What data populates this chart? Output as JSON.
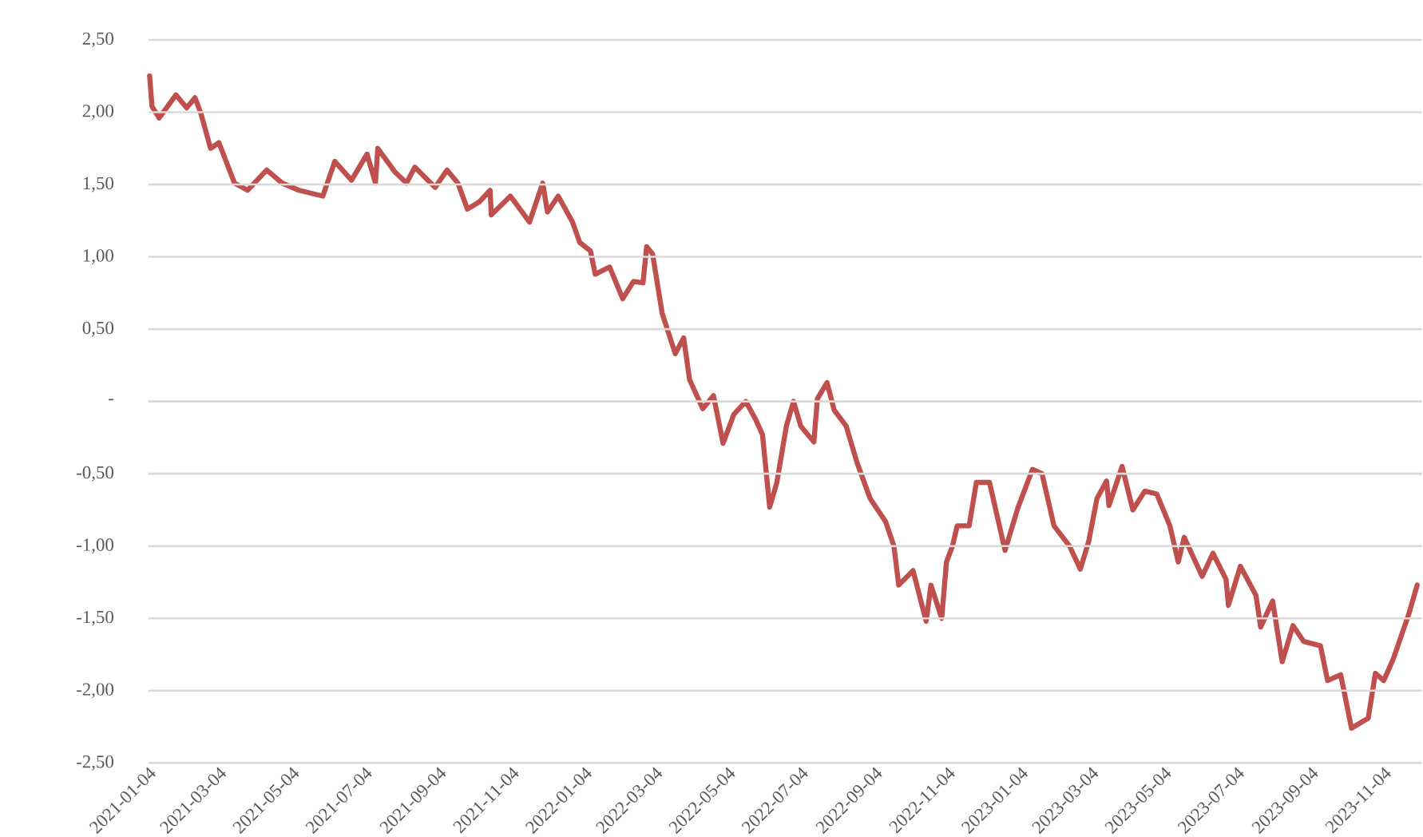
{
  "chart_data": {
    "type": "line",
    "color": "#c0504d",
    "grid": "y",
    "x": [
      "2021-01-05",
      "2021-01-07",
      "2021-01-13",
      "2021-01-27",
      "2021-02-05",
      "2021-02-12",
      "2021-02-17",
      "2021-02-25",
      "2021-03-04",
      "2021-03-17",
      "2021-03-28",
      "2021-04-13",
      "2021-04-26",
      "2021-05-10",
      "2021-05-30",
      "2021-06-09",
      "2021-06-23",
      "2021-07-06",
      "2021-07-13",
      "2021-07-15",
      "2021-07-29",
      "2021-08-08",
      "2021-08-15",
      "2021-09-01",
      "2021-09-11",
      "2021-09-20",
      "2021-09-28",
      "2021-10-08",
      "2021-10-17",
      "2021-10-18",
      "2021-11-03",
      "2021-11-19",
      "2021-11-30",
      "2021-12-04",
      "2021-12-13",
      "2021-12-25",
      "2021-12-31",
      "2022-01-09",
      "2022-01-13",
      "2022-01-25",
      "2022-02-05",
      "2022-02-14",
      "2022-02-22",
      "2022-02-25",
      "2022-03-02",
      "2022-03-10",
      "2022-03-21",
      "2022-03-28",
      "2022-04-02",
      "2022-04-13",
      "2022-04-22",
      "2022-04-30",
      "2022-05-09",
      "2022-05-19",
      "2022-05-27",
      "2022-06-02",
      "2022-06-08",
      "2022-06-14",
      "2022-06-22",
      "2022-06-28",
      "2022-07-04",
      "2022-07-15",
      "2022-07-18",
      "2022-07-26",
      "2022-08-01",
      "2022-08-11",
      "2022-08-20",
      "2022-08-31",
      "2022-09-13",
      "2022-09-20",
      "2022-09-24",
      "2022-10-06",
      "2022-10-17",
      "2022-10-21",
      "2022-10-30",
      "2022-11-03",
      "2022-11-08",
      "2022-11-12",
      "2022-11-22",
      "2022-11-28",
      "2022-12-09",
      "2022-12-22",
      "2023-01-02",
      "2023-01-14",
      "2023-01-22",
      "2023-02-01",
      "2023-02-14",
      "2023-02-23",
      "2023-03-02",
      "2023-03-09",
      "2023-03-17",
      "2023-03-19",
      "2023-03-30",
      "2023-04-08",
      "2023-04-18",
      "2023-04-28",
      "2023-05-09",
      "2023-05-16",
      "2023-05-21",
      "2023-06-05",
      "2023-06-14",
      "2023-06-25",
      "2023-06-27",
      "2023-07-07",
      "2023-07-20",
      "2023-07-24",
      "2023-08-03",
      "2023-08-11",
      "2023-08-20",
      "2023-08-29",
      "2023-09-12",
      "2023-09-18",
      "2023-09-29",
      "2023-10-08",
      "2023-10-22",
      "2023-10-28",
      "2023-11-04",
      "2023-11-12",
      "2023-11-25",
      "2023-12-02"
    ],
    "values": [
      2.25,
      2.04,
      1.96,
      2.12,
      2.03,
      2.1,
      1.99,
      1.75,
      1.79,
      1.51,
      1.46,
      1.6,
      1.51,
      1.46,
      1.42,
      1.66,
      1.53,
      1.71,
      1.51,
      1.75,
      1.59,
      1.51,
      1.62,
      1.48,
      1.6,
      1.51,
      1.33,
      1.38,
      1.46,
      1.29,
      1.42,
      1.24,
      1.51,
      1.31,
      1.42,
      1.24,
      1.1,
      1.04,
      0.88,
      0.93,
      0.71,
      0.83,
      0.82,
      1.07,
      1.02,
      0.61,
      0.33,
      0.44,
      0.15,
      -0.05,
      0.04,
      -0.29,
      -0.09,
      0.0,
      -0.12,
      -0.23,
      -0.73,
      -0.56,
      -0.17,
      0.0,
      -0.17,
      -0.28,
      0.02,
      0.13,
      -0.06,
      -0.17,
      -0.42,
      -0.67,
      -0.83,
      -1.0,
      -1.27,
      -1.17,
      -1.52,
      -1.27,
      -1.5,
      -1.11,
      -1.0,
      -0.86,
      -0.86,
      -0.56,
      -0.56,
      -1.03,
      -0.73,
      -0.47,
      -0.5,
      -0.86,
      -1.0,
      -1.16,
      -0.97,
      -0.67,
      -0.55,
      -0.72,
      -0.45,
      -0.75,
      -0.62,
      -0.64,
      -0.86,
      -1.11,
      -0.94,
      -1.21,
      -1.05,
      -1.23,
      -1.41,
      -1.14,
      -1.34,
      -1.56,
      -1.38,
      -1.8,
      -1.55,
      -1.66,
      -1.69,
      -1.93,
      -1.89,
      -2.26,
      -2.19,
      -1.88,
      -1.93,
      -1.78,
      -1.47,
      -1.27
    ],
    "xlim": [
      "2021-01-04",
      "2023-12-06"
    ],
    "xticks": [
      "2021-01-04",
      "2021-03-04",
      "2021-05-04",
      "2021-07-04",
      "2021-09-04",
      "2021-11-04",
      "2022-01-04",
      "2022-03-04",
      "2022-05-04",
      "2022-07-04",
      "2022-09-04",
      "2022-11-04",
      "2023-01-04",
      "2023-03-04",
      "2023-05-04",
      "2023-07-04",
      "2023-09-04",
      "2023-11-04"
    ],
    "ylim": [
      -2.5,
      2.5
    ],
    "yticks": [
      {
        "value": 2.5,
        "label": "2,50"
      },
      {
        "value": 2.0,
        "label": "2,00"
      },
      {
        "value": 1.5,
        "label": "1,50"
      },
      {
        "value": 1.0,
        "label": "1,00"
      },
      {
        "value": 0.5,
        "label": "0,50"
      },
      {
        "value": 0,
        "label": "-"
      },
      {
        "value": -0.5,
        "label": "-0,50"
      },
      {
        "value": -1.0,
        "label": "-1,00"
      },
      {
        "value": -1.5,
        "label": "-1,50"
      },
      {
        "value": -2.0,
        "label": "-2,00"
      },
      {
        "value": -2.5,
        "label": "-2,50"
      }
    ]
  }
}
